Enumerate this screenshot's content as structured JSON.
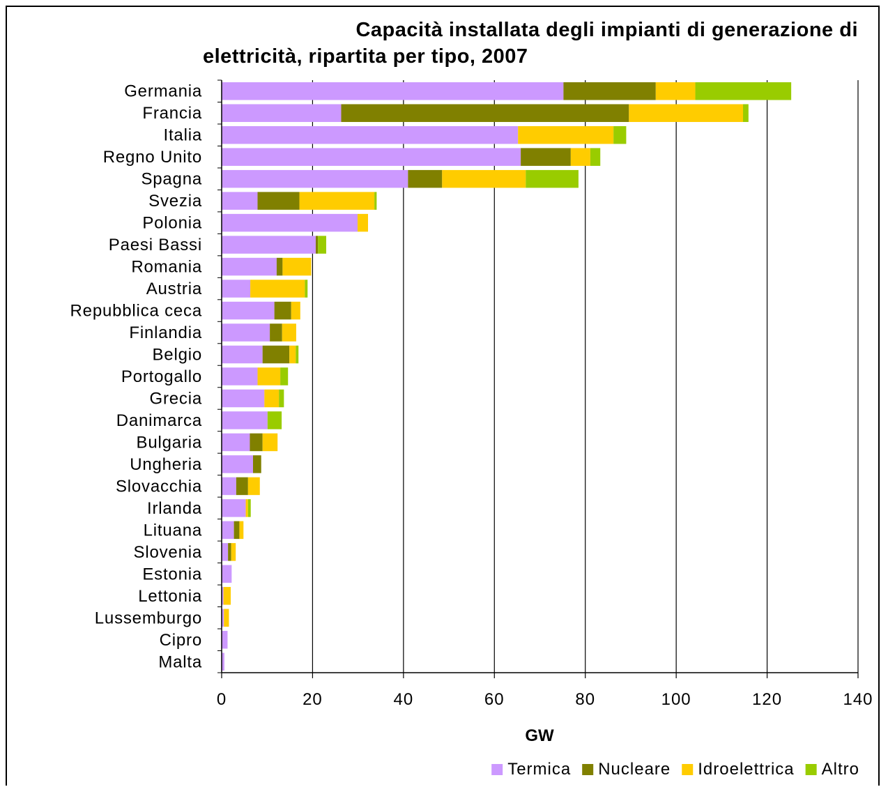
{
  "chart_data": {
    "type": "bar",
    "orientation": "horizontal",
    "stacked": true,
    "title_lines": [
      "Capacità installata degli impianti di generazione di",
      "elettricità, ripartita per tipo, 2007"
    ],
    "xlabel": "GW",
    "ylabel": "",
    "xlim": [
      0,
      140
    ],
    "xticks": [
      0,
      20,
      40,
      60,
      80,
      100,
      120,
      140
    ],
    "grid": "vertical",
    "legend_position": "bottom",
    "categories": [
      "Germania",
      "Francia",
      "Italia",
      "Regno Unito",
      "Spagna",
      "Svezia",
      "Polonia",
      "Paesi Bassi",
      "Romania",
      "Austria",
      "Repubblica ceca",
      "Finlandia",
      "Belgio",
      "Portogallo",
      "Grecia",
      "Danimarca",
      "Bulgaria",
      "Ungheria",
      "Slovacchia",
      "Irlanda",
      "Lituana",
      "Slovenia",
      "Estonia",
      "Lettonia",
      "Lussemburgo",
      "Cipro",
      "Malta"
    ],
    "series": [
      {
        "name": "Termica",
        "color": "#cc99ff",
        "values": [
          75.2,
          26.3,
          65.2,
          65.8,
          41.0,
          7.9,
          29.9,
          20.7,
          12.1,
          6.3,
          11.6,
          10.6,
          9.0,
          7.9,
          9.4,
          10.1,
          6.2,
          6.9,
          3.2,
          5.3,
          2.7,
          1.4,
          2.2,
          0.4,
          0.5,
          1.3,
          0.6
        ]
      },
      {
        "name": "Nucleare",
        "color": "#808000",
        "values": [
          20.3,
          63.3,
          0,
          11.0,
          7.5,
          9.2,
          0,
          0.5,
          1.3,
          0,
          3.7,
          2.7,
          5.9,
          0,
          0,
          0,
          2.8,
          1.8,
          2.6,
          0,
          1.2,
          0.7,
          0,
          0,
          0,
          0,
          0
        ]
      },
      {
        "name": "Idroelettrica",
        "color": "#ffcc00",
        "values": [
          8.7,
          25.1,
          21.0,
          4.3,
          18.4,
          16.5,
          2.3,
          0,
          6.3,
          12.0,
          2.0,
          3.1,
          1.4,
          5.0,
          3.2,
          0,
          3.3,
          0,
          2.6,
          0.5,
          0.9,
          1.0,
          0,
          1.6,
          1.1,
          0,
          0
        ]
      },
      {
        "name": "Altro",
        "color": "#99cc00",
        "values": [
          21.1,
          1.2,
          2.8,
          2.2,
          11.6,
          0.5,
          0,
          1.8,
          0,
          0.6,
          0,
          0,
          0.6,
          1.7,
          1.1,
          3.1,
          0,
          0,
          0,
          0.6,
          0,
          0,
          0,
          0,
          0,
          0,
          0
        ]
      }
    ]
  }
}
